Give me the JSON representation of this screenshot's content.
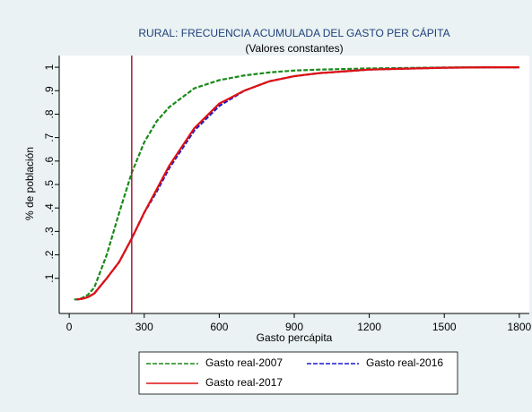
{
  "chart_data": {
    "type": "line",
    "title": "RURAL: FRECUENCIA ACUMULADA DEL GASTO PER CÁPITA",
    "subtitle": "(Valores constantes)",
    "x_label": "Gasto percápita",
    "y_label": "% de población",
    "x": [
      20,
      30,
      50,
      75,
      100,
      150,
      200,
      250,
      300,
      350,
      400,
      500,
      600,
      700,
      800,
      900,
      1000,
      1200,
      1500,
      1700,
      1800
    ],
    "series": [
      {
        "name": "Gasto real-2007",
        "color": "#1a8a1a",
        "style": "dashed",
        "values": [
          0.01,
          0.01,
          0.015,
          0.03,
          0.06,
          0.2,
          0.38,
          0.55,
          0.68,
          0.77,
          0.83,
          0.91,
          0.945,
          0.965,
          0.978,
          0.986,
          0.99,
          0.995,
          0.999,
          1,
          1
        ]
      },
      {
        "name": "Gasto real-2016",
        "color": "#1a1acc",
        "style": "dashed",
        "values": [
          null,
          0.01,
          0.012,
          0.02,
          0.035,
          0.1,
          0.17,
          0.27,
          0.38,
          0.47,
          0.57,
          0.73,
          0.835,
          0.9,
          0.94,
          0.962,
          0.975,
          0.99,
          0.998,
          1,
          1
        ]
      },
      {
        "name": "Gasto real-2017",
        "color": "#e01010",
        "style": "solid",
        "values": [
          null,
          0.01,
          0.012,
          0.02,
          0.035,
          0.1,
          0.17,
          0.27,
          0.38,
          0.48,
          0.58,
          0.74,
          0.845,
          0.9,
          0.94,
          0.962,
          0.975,
          0.99,
          0.998,
          1,
          1
        ]
      }
    ],
    "reference_line": {
      "x": 250,
      "color": "#a0203a"
    },
    "xlim": [
      -40,
      1840
    ],
    "xticks": [
      0,
      300,
      600,
      900,
      1200,
      1500,
      1800
    ],
    "ylim": [
      -0.05,
      1.05
    ],
    "yticks": [
      {
        "value": 0.1,
        "label": ".1"
      },
      {
        "value": 0.2,
        "label": ".2"
      },
      {
        "value": 0.3,
        "label": ".3"
      },
      {
        "value": 0.4,
        "label": ".4"
      },
      {
        "value": 0.5,
        "label": ".5"
      },
      {
        "value": 0.6,
        "label": ".6"
      },
      {
        "value": 0.7,
        "label": ".7"
      },
      {
        "value": 0.8,
        "label": ".8"
      },
      {
        "value": 0.9,
        "label": ".9"
      },
      1
    ],
    "grid": false,
    "legend": "bottom"
  }
}
